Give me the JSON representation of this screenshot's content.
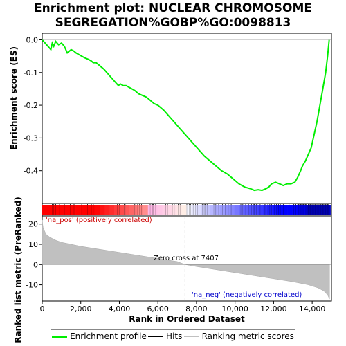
{
  "chart_data": [
    {
      "type": "line",
      "title": "Enrichment plot: NUCLEAR CHROMOSOME SEGREGATION%GOBP%GO:0098813",
      "ylabel": "Enrichment score (ES)",
      "xlim": [
        0,
        15000
      ],
      "ylim": [
        -0.5,
        0.02
      ],
      "yticks": [
        0.0,
        -0.1,
        -0.2,
        -0.3,
        -0.4
      ],
      "ytick_labels": [
        "0.0",
        "-0.1",
        "-0.2",
        "-0.3",
        "-0.4"
      ],
      "series": [
        {
          "name": "Enrichment profile",
          "color": "#00ee00",
          "x": [
            0,
            150,
            300,
            450,
            520,
            600,
            700,
            850,
            1000,
            1150,
            1300,
            1500,
            1650,
            1750,
            1900,
            2050,
            2200,
            2400,
            2550,
            2650,
            2800,
            3000,
            3200,
            3500,
            3800,
            3950,
            4050,
            4200,
            4350,
            4500,
            4800,
            5000,
            5200,
            5400,
            5600,
            5800,
            6000,
            6300,
            6600,
            6900,
            7200,
            7500,
            7800,
            8100,
            8400,
            8700,
            9000,
            9300,
            9600,
            9900,
            10200,
            10500,
            10800,
            11000,
            11200,
            11400,
            11600,
            11750,
            11900,
            12100,
            12300,
            12500,
            12700,
            12900,
            13100,
            13250,
            13400,
            13500,
            13650,
            13800,
            13950,
            14100,
            14250,
            14400,
            14550,
            14700,
            14800,
            14880
          ],
          "y": [
            0.0,
            -0.01,
            -0.02,
            -0.03,
            -0.01,
            -0.02,
            -0.005,
            -0.015,
            -0.01,
            -0.02,
            -0.04,
            -0.03,
            -0.035,
            -0.04,
            -0.045,
            -0.05,
            -0.055,
            -0.06,
            -0.065,
            -0.07,
            -0.07,
            -0.08,
            -0.09,
            -0.11,
            -0.13,
            -0.14,
            -0.135,
            -0.14,
            -0.14,
            -0.145,
            -0.155,
            -0.165,
            -0.17,
            -0.175,
            -0.185,
            -0.195,
            -0.2,
            -0.215,
            -0.235,
            -0.255,
            -0.275,
            -0.295,
            -0.315,
            -0.335,
            -0.355,
            -0.37,
            -0.385,
            -0.4,
            -0.41,
            -0.425,
            -0.44,
            -0.45,
            -0.455,
            -0.46,
            -0.458,
            -0.46,
            -0.455,
            -0.45,
            -0.44,
            -0.435,
            -0.44,
            -0.445,
            -0.44,
            -0.44,
            -0.435,
            -0.42,
            -0.4,
            -0.385,
            -0.37,
            -0.35,
            -0.33,
            -0.29,
            -0.25,
            -0.2,
            -0.15,
            -0.1,
            -0.05,
            0.0
          ]
        }
      ]
    },
    {
      "type": "area",
      "xlabel": "Rank in Ordered Dataset",
      "ylabel": "Ranked list metric (PreRanked)",
      "xlim": [
        0,
        15000
      ],
      "ylim": [
        -18,
        24
      ],
      "yticks": [
        20,
        10,
        0,
        -10
      ],
      "ytick_labels": [
        "20",
        "10",
        "0",
        "-10"
      ],
      "xticks": [
        0,
        2000,
        4000,
        6000,
        8000,
        10000,
        12000,
        14000
      ],
      "xtick_labels": [
        "0",
        "2,000",
        "4,000",
        "6,000",
        "8,000",
        "10,000",
        "12,000",
        "14,000"
      ],
      "zero_cross": 7407,
      "series": [
        {
          "name": "Ranking metric scores",
          "color": "#c0c0c0",
          "x": [
            0,
            50,
            200,
            400,
            700,
            1000,
            1500,
            2000,
            3000,
            4000,
            5000,
            6000,
            7000,
            7407,
            8000,
            9000,
            10000,
            11000,
            12000,
            13000,
            13800,
            14300,
            14600,
            14800,
            14900
          ],
          "y": [
            22,
            18,
            15,
            13.5,
            12,
            11,
            10,
            9,
            7.5,
            6,
            4.5,
            3,
            1.5,
            0,
            -1,
            -2.5,
            -4,
            -5.5,
            -7,
            -8.5,
            -10,
            -11.5,
            -13,
            -15,
            -17
          ]
        }
      ]
    }
  ],
  "annotations": {
    "pos_label": "'na_pos' (positively correlated)",
    "neg_label": "'na_neg' (negatively correlated)",
    "zero_label": "Zero cross at 7407"
  },
  "hits": [
    450,
    520,
    600,
    700,
    900,
    1150,
    1450,
    1650,
    1700,
    2050,
    2350,
    2550,
    2650,
    3900,
    4000,
    4150,
    4250,
    4300,
    4400,
    4800,
    4950,
    5050,
    5150,
    5550,
    5600,
    5680,
    5720,
    5760,
    5800,
    5880,
    6400,
    6500,
    6750,
    6850,
    6950,
    7050,
    7150,
    7500,
    7550,
    7620,
    7700,
    7780,
    7850,
    7950,
    8050,
    8300,
    8400,
    8450,
    8550,
    8700,
    8900,
    9000,
    9150,
    9350,
    9500,
    9650,
    9800,
    10100,
    10300,
    10400,
    10550,
    10700,
    10850,
    10950,
    11000,
    11100,
    11150,
    11250,
    11300,
    11400,
    11500,
    11550,
    11600,
    11700,
    11800,
    11900,
    12050,
    12150,
    12250,
    12350,
    12500,
    12650,
    12800,
    12900,
    13050,
    13150,
    13250,
    13300,
    13350,
    13400,
    13450,
    13500,
    13550,
    13600,
    13650,
    13700,
    13800,
    13850,
    13900,
    13950,
    14000,
    14050,
    14100,
    14150,
    14200,
    14250,
    14300,
    14350,
    14400,
    14450,
    14500,
    14550,
    14600,
    14650,
    14700,
    14750,
    14800,
    14850
  ],
  "legend": [
    {
      "label": "Enrichment profile",
      "color": "#00ee00"
    },
    {
      "label": "Hits",
      "color": "#000000"
    },
    {
      "label": "Ranking metric scores",
      "color": "#c0c0c0"
    }
  ]
}
